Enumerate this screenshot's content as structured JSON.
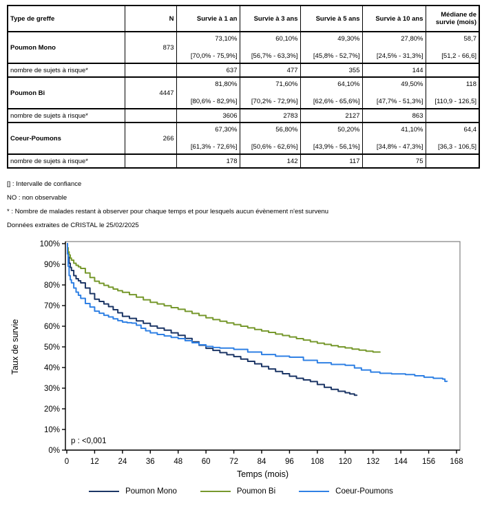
{
  "table": {
    "headers": [
      "Type de greffe",
      "N",
      "Survie à 1 an",
      "Survie à 3 ans",
      "Survie à 5 ans",
      "Survie à 10 ans",
      "Médiane de survie (mois)"
    ],
    "risk_label": "nombre de sujets à risque*",
    "groups": [
      {
        "name": "Poumon Mono",
        "n": "873",
        "values": [
          "73,10%",
          "60,10%",
          "49,30%",
          "27,80%"
        ],
        "cis": [
          "[70,0% - 75,9%]",
          "[56,7% - 63,3%]",
          "[45,8% - 52,7%]",
          "[24,5% - 31,3%]"
        ],
        "median": "58,7",
        "median_ci": "[51,2 - 66,6]",
        "risk": [
          "637",
          "477",
          "355",
          "144"
        ]
      },
      {
        "name": "Poumon Bi",
        "n": "4447",
        "values": [
          "81,80%",
          "71,60%",
          "64,10%",
          "49,50%"
        ],
        "cis": [
          "[80,6% - 82,9%]",
          "[70,2% - 72,9%]",
          "[62,6% - 65,6%]",
          "[47,7% - 51,3%]"
        ],
        "median": "118",
        "median_ci": "[110,9 - 126,5]",
        "risk": [
          "3606",
          "2783",
          "2127",
          "863"
        ]
      },
      {
        "name": "Coeur-Poumons",
        "n": "266",
        "values": [
          "67,30%",
          "56,80%",
          "50,20%",
          "41,10%"
        ],
        "cis": [
          "[61,3% - 72,6%]",
          "[50,6% - 62,6%]",
          "[43,9% - 56,1%]",
          "[34,8% - 47,3%]"
        ],
        "median": "64,4",
        "median_ci": "[36,3 - 106,5]",
        "risk": [
          "178",
          "142",
          "117",
          "75"
        ]
      }
    ]
  },
  "footnotes": [
    "[] : Intervalle de confiance",
    "NO : non observable",
    "* : Nombre de malades restant à observer pour chaque temps et pour lesquels aucun évènement n'est survenu",
    "Données extraites de CRISTAL le 25/02/2025"
  ],
  "chart_data": {
    "type": "line",
    "subtype": "kaplan-meier-step",
    "title": "",
    "xlabel": "Temps (mois)",
    "ylabel": "Taux de survie",
    "annotation": "p : <0,001",
    "xlim": [
      0,
      168
    ],
    "ylim": [
      0,
      100
    ],
    "xticks": [
      0,
      12,
      24,
      36,
      48,
      60,
      72,
      84,
      96,
      108,
      120,
      132,
      144,
      156,
      168
    ],
    "yticks": [
      0,
      10,
      20,
      30,
      40,
      50,
      60,
      70,
      80,
      90,
      100
    ],
    "ytick_suffix": "%",
    "grid": false,
    "legend_position": "bottom",
    "axis_color": "#000000",
    "frame_color": "#808080",
    "series": [
      {
        "name": "Poumon Mono",
        "color": "#1B3565",
        "points": [
          [
            0,
            100
          ],
          [
            0.3,
            97
          ],
          [
            0.6,
            93.5
          ],
          [
            1,
            90.5
          ],
          [
            1.5,
            88.5
          ],
          [
            2,
            87
          ],
          [
            3,
            84.5
          ],
          [
            4,
            83
          ],
          [
            5,
            82
          ],
          [
            6,
            81
          ],
          [
            8,
            78.5
          ],
          [
            10,
            75.8
          ],
          [
            12,
            73.1
          ],
          [
            14,
            72
          ],
          [
            16,
            70.8
          ],
          [
            18,
            69.5
          ],
          [
            20,
            68
          ],
          [
            22,
            66.5
          ],
          [
            24,
            64.8
          ],
          [
            27,
            63.8
          ],
          [
            30,
            62.6
          ],
          [
            33,
            61.4
          ],
          [
            36,
            60.1
          ],
          [
            39,
            59.1
          ],
          [
            42,
            58.1
          ],
          [
            45,
            56.8
          ],
          [
            48,
            55.6
          ],
          [
            51,
            54.1
          ],
          [
            54,
            52.4
          ],
          [
            57,
            50.8
          ],
          [
            60,
            49.3
          ],
          [
            63,
            48.3
          ],
          [
            66,
            47.2
          ],
          [
            69,
            46.2
          ],
          [
            72,
            45.3
          ],
          [
            75,
            44.1
          ],
          [
            78,
            43
          ],
          [
            81,
            41.8
          ],
          [
            84,
            40.5
          ],
          [
            87,
            39.3
          ],
          [
            90,
            38.1
          ],
          [
            93,
            37
          ],
          [
            96,
            35.8
          ],
          [
            99,
            34.8
          ],
          [
            102,
            34
          ],
          [
            105,
            33.2
          ],
          [
            108,
            31.8
          ],
          [
            111,
            30.4
          ],
          [
            114,
            29.4
          ],
          [
            117,
            28.5
          ],
          [
            120,
            27.8
          ],
          [
            122,
            27.2
          ],
          [
            124,
            26.6
          ],
          [
            125,
            26.3
          ]
        ]
      },
      {
        "name": "Poumon Bi",
        "color": "#76982C",
        "points": [
          [
            0,
            100
          ],
          [
            0.3,
            98
          ],
          [
            0.6,
            96
          ],
          [
            1,
            94.5
          ],
          [
            1.5,
            93
          ],
          [
            2,
            92
          ],
          [
            3,
            90.5
          ],
          [
            4,
            89.5
          ],
          [
            5,
            88.8
          ],
          [
            6,
            88
          ],
          [
            8,
            85.8
          ],
          [
            10,
            83.6
          ],
          [
            12,
            81.8
          ],
          [
            14,
            80.8
          ],
          [
            16,
            79.8
          ],
          [
            18,
            78.9
          ],
          [
            20,
            78
          ],
          [
            22,
            77.2
          ],
          [
            24,
            76.4
          ],
          [
            27,
            75.3
          ],
          [
            30,
            74.1
          ],
          [
            33,
            72.8
          ],
          [
            36,
            71.6
          ],
          [
            39,
            70.8
          ],
          [
            42,
            69.9
          ],
          [
            45,
            69
          ],
          [
            48,
            68.2
          ],
          [
            51,
            67.2
          ],
          [
            54,
            66.2
          ],
          [
            57,
            65.2
          ],
          [
            60,
            64.1
          ],
          [
            63,
            63.2
          ],
          [
            66,
            62.4
          ],
          [
            69,
            61.6
          ],
          [
            72,
            60.8
          ],
          [
            75,
            60
          ],
          [
            78,
            59.2
          ],
          [
            81,
            58.4
          ],
          [
            84,
            57.7
          ],
          [
            87,
            57
          ],
          [
            90,
            56.2
          ],
          [
            93,
            55.5
          ],
          [
            96,
            54.8
          ],
          [
            99,
            54
          ],
          [
            102,
            53.3
          ],
          [
            105,
            52.5
          ],
          [
            108,
            51.8
          ],
          [
            111,
            51.2
          ],
          [
            114,
            50.6
          ],
          [
            117,
            50
          ],
          [
            120,
            49.5
          ],
          [
            123,
            48.9
          ],
          [
            126,
            48.4
          ],
          [
            129,
            47.9
          ],
          [
            132,
            47.5
          ],
          [
            135,
            47.2
          ]
        ]
      },
      {
        "name": "Coeur-Poumons",
        "color": "#2F80E4",
        "points": [
          [
            0,
            100
          ],
          [
            0.3,
            95
          ],
          [
            0.6,
            89
          ],
          [
            1,
            84.5
          ],
          [
            1.5,
            82.5
          ],
          [
            2,
            81
          ],
          [
            3,
            78.5
          ],
          [
            4,
            76.5
          ],
          [
            5,
            75
          ],
          [
            6,
            73.5
          ],
          [
            8,
            71
          ],
          [
            10,
            69.3
          ],
          [
            12,
            67.3
          ],
          [
            14,
            66.3
          ],
          [
            16,
            65.3
          ],
          [
            18,
            64.5
          ],
          [
            20,
            63.6
          ],
          [
            22,
            62.7
          ],
          [
            24,
            62
          ],
          [
            26,
            61.7
          ],
          [
            28,
            61.5
          ],
          [
            30,
            60.5
          ],
          [
            32,
            59
          ],
          [
            34,
            57.8
          ],
          [
            36,
            56.8
          ],
          [
            39,
            56
          ],
          [
            42,
            55.3
          ],
          [
            45,
            54.6
          ],
          [
            48,
            54
          ],
          [
            51,
            53
          ],
          [
            54,
            52
          ],
          [
            57,
            51
          ],
          [
            60,
            50.2
          ],
          [
            63,
            49.7
          ],
          [
            66,
            49.4
          ],
          [
            72,
            48.8
          ],
          [
            78,
            47.5
          ],
          [
            84,
            46.3
          ],
          [
            90,
            45.5
          ],
          [
            96,
            45
          ],
          [
            102,
            43.5
          ],
          [
            108,
            42.3
          ],
          [
            114,
            41.5
          ],
          [
            120,
            41.1
          ],
          [
            124,
            39.8
          ],
          [
            127,
            38.8
          ],
          [
            131,
            37.8
          ],
          [
            135,
            37.2
          ],
          [
            140,
            36.9
          ],
          [
            146,
            36.6
          ],
          [
            150,
            36
          ],
          [
            154,
            35.3
          ],
          [
            158,
            34.8
          ],
          [
            162,
            34.4
          ],
          [
            163,
            33.3
          ],
          [
            164,
            33.2
          ]
        ]
      }
    ]
  }
}
